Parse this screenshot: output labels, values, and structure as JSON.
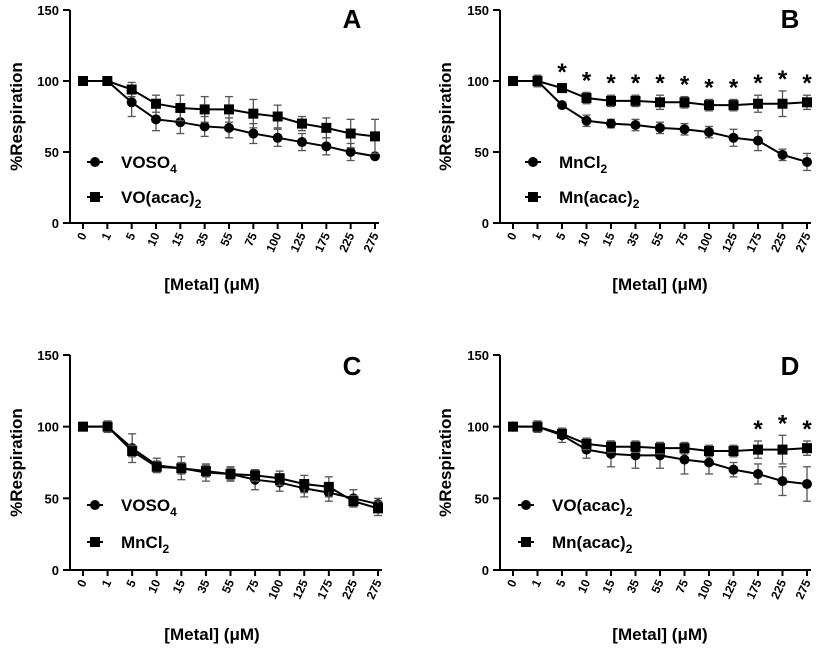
{
  "chart_data": [
    {
      "panel": "A",
      "type": "line",
      "xlabel": "[Metal] (μM)",
      "ylabel": "%Respiration",
      "ylim": [
        0,
        150
      ],
      "yticks": [
        0,
        50,
        100,
        150
      ],
      "categories": [
        "0",
        "1",
        "5",
        "10",
        "15",
        "35",
        "55",
        "75",
        "100",
        "125",
        "175",
        "225",
        "275"
      ],
      "legend_position": "bottom-left",
      "series": [
        {
          "label": "VOSO",
          "sub": "4",
          "marker": "circle",
          "values": [
            100,
            100,
            85,
            73,
            71,
            68,
            67,
            63,
            60,
            57,
            54,
            50,
            47
          ],
          "errors": [
            0,
            0,
            10,
            8,
            8,
            7,
            7,
            7,
            6,
            6,
            6,
            6,
            0
          ]
        },
        {
          "label": "VO(acac)",
          "sub": "2",
          "marker": "square",
          "values": [
            100,
            100,
            94,
            84,
            81,
            80,
            80,
            77,
            75,
            70,
            67,
            63,
            61
          ],
          "errors": [
            0,
            0,
            5,
            6,
            9,
            9,
            9,
            10,
            8,
            5,
            7,
            10,
            12
          ]
        }
      ],
      "significance": []
    },
    {
      "panel": "B",
      "type": "line",
      "xlabel": "[Metal] (μM)",
      "ylabel": "%Respiration",
      "ylim": [
        0,
        150
      ],
      "yticks": [
        0,
        50,
        100,
        150
      ],
      "categories": [
        "0",
        "1",
        "5",
        "10",
        "15",
        "35",
        "55",
        "75",
        "100",
        "125",
        "175",
        "225",
        "275"
      ],
      "legend_position": "bottom-left",
      "series": [
        {
          "label": "MnCl",
          "sub": "2",
          "marker": "circle",
          "values": [
            100,
            100,
            83,
            72,
            70,
            69,
            67,
            66,
            64,
            60,
            58,
            48,
            43
          ],
          "errors": [
            0,
            4,
            0,
            4,
            3,
            4,
            4,
            4,
            4,
            6,
            7,
            4,
            6
          ]
        },
        {
          "label": "Mn(acac)",
          "sub": "2",
          "marker": "square",
          "values": [
            100,
            100,
            95,
            88,
            86,
            86,
            85,
            85,
            83,
            83,
            84,
            84,
            85
          ],
          "errors": [
            0,
            4,
            3,
            4,
            4,
            4,
            5,
            4,
            4,
            4,
            6,
            9,
            5
          ]
        }
      ],
      "significance": [
        "",
        "",
        "*",
        "*",
        "*",
        "*",
        "*",
        "*",
        "*",
        "*",
        "*",
        "*",
        "*"
      ]
    },
    {
      "panel": "C",
      "type": "line",
      "xlabel": "[Metal] (μM)",
      "ylabel": "%Respiration",
      "ylim": [
        0,
        150
      ],
      "yticks": [
        0,
        50,
        100,
        150
      ],
      "categories": [
        "0",
        "1",
        "5",
        "10",
        "15",
        "35",
        "55",
        "75",
        "100",
        "125",
        "175",
        "225",
        "275"
      ],
      "legend_position": "bottom-left",
      "series": [
        {
          "label": "VOSO",
          "sub": "4",
          "marker": "circle",
          "values": [
            100,
            100,
            85,
            73,
            71,
            68,
            67,
            63,
            61,
            57,
            54,
            50,
            46
          ],
          "errors": [
            0,
            0,
            10,
            5,
            8,
            6,
            5,
            7,
            6,
            6,
            6,
            6,
            4
          ]
        },
        {
          "label": "MnCl",
          "sub": "2",
          "marker": "square",
          "values": [
            100,
            100,
            83,
            72,
            71,
            69,
            67,
            66,
            64,
            60,
            58,
            48,
            43
          ],
          "errors": [
            0,
            4,
            4,
            4,
            4,
            4,
            4,
            4,
            5,
            6,
            7,
            4,
            5
          ]
        }
      ],
      "significance": []
    },
    {
      "panel": "D",
      "type": "line",
      "xlabel": "[Metal] (μM)",
      "ylabel": "%Respiration",
      "ylim": [
        0,
        150
      ],
      "yticks": [
        0,
        50,
        100,
        150
      ],
      "categories": [
        "0",
        "1",
        "5",
        "10",
        "15",
        "35",
        "55",
        "75",
        "100",
        "125",
        "175",
        "225",
        "275"
      ],
      "legend_position": "bottom-left",
      "series": [
        {
          "label": "VO(acac)",
          "sub": "2",
          "marker": "circle",
          "values": [
            100,
            100,
            94,
            84,
            81,
            80,
            80,
            77,
            75,
            70,
            67,
            62,
            60
          ],
          "errors": [
            0,
            0,
            5,
            6,
            9,
            9,
            9,
            10,
            8,
            5,
            7,
            10,
            12
          ]
        },
        {
          "label": "Mn(acac)",
          "sub": "2",
          "marker": "square",
          "values": [
            100,
            100,
            95,
            88,
            86,
            86,
            85,
            85,
            83,
            83,
            84,
            84,
            85
          ],
          "errors": [
            0,
            4,
            3,
            4,
            4,
            4,
            4,
            4,
            4,
            4,
            6,
            10,
            5
          ]
        }
      ],
      "significance": [
        "",
        "",
        "",
        "",
        "",
        "",
        "",
        "",
        "",
        "",
        "*",
        "*",
        "*"
      ]
    }
  ]
}
